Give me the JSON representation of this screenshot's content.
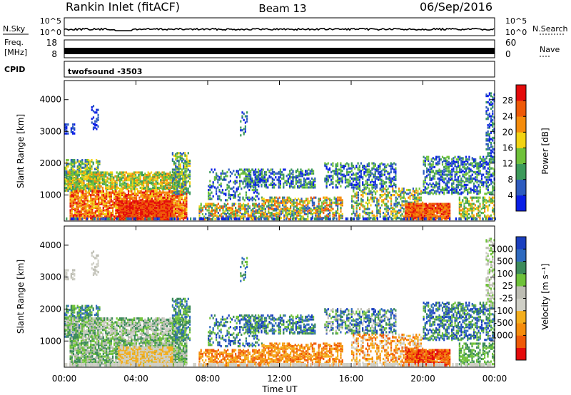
{
  "header": {
    "station": "Rankin Inlet (fitACF)",
    "beam": "Beam 13",
    "date": "06/Sep/2016"
  },
  "noise_panel": {
    "left_label": "N.Sky",
    "right_label": "N.Search",
    "left_ticks": [
      "10^5",
      "10^0"
    ],
    "right_ticks": [
      "10^5",
      "10^0"
    ]
  },
  "freq_panel": {
    "left_label_line1": "Freq.",
    "left_label_line2": "[MHz]",
    "right_label": "Nave",
    "left_ticks": [
      "18",
      "8"
    ],
    "right_ticks": [
      "60",
      "0"
    ]
  },
  "cpid_panel": {
    "label": "CPID",
    "program": "twofsound  -3503"
  },
  "colors": {
    "power_scale": [
      "#0a1fe6",
      "#2e5cbf",
      "#3c9a5a",
      "#6fc23a",
      "#f2d312",
      "#f58c0c",
      "#ef5a08",
      "#e40b0b"
    ],
    "velocity_scale": [
      "#e40b0b",
      "#ef5a08",
      "#f58c0c",
      "#f4ae1c",
      "#cfcfc6",
      "#bdbdb3",
      "#6fc23a",
      "#3c8a5a",
      "#2e6abf",
      "#1a3fbf"
    ]
  },
  "chart_data": [
    {
      "type": "heatmap",
      "name": "power",
      "ylabel": "Slant Range [km]",
      "ylim": [
        180,
        4600
      ],
      "yticks": [
        "1000",
        "2000",
        "3000",
        "4000"
      ],
      "colorbar_label": "Power [dB]",
      "colorbar_ticks": [
        "4",
        "8",
        "12",
        "16",
        "20",
        "24",
        "28"
      ],
      "colorbar_range": [
        0,
        32
      ]
    },
    {
      "type": "heatmap",
      "name": "velocity",
      "ylabel": "Slant Range [km]",
      "ylim": [
        180,
        4600
      ],
      "yticks": [
        "1000",
        "2000",
        "3000",
        "4000"
      ],
      "colorbar_label": "Velocity [m s⁻¹]",
      "colorbar_ticks": [
        "1000",
        "500",
        "100",
        "25",
        "-25",
        "-100",
        "-500",
        "-1000"
      ],
      "xlabel": "Time UT",
      "xticks": [
        "00:00",
        "04:00",
        "08:00",
        "12:00",
        "16:00",
        "20:00",
        "00:00"
      ],
      "xlim_hours": [
        0,
        24
      ]
    }
  ]
}
